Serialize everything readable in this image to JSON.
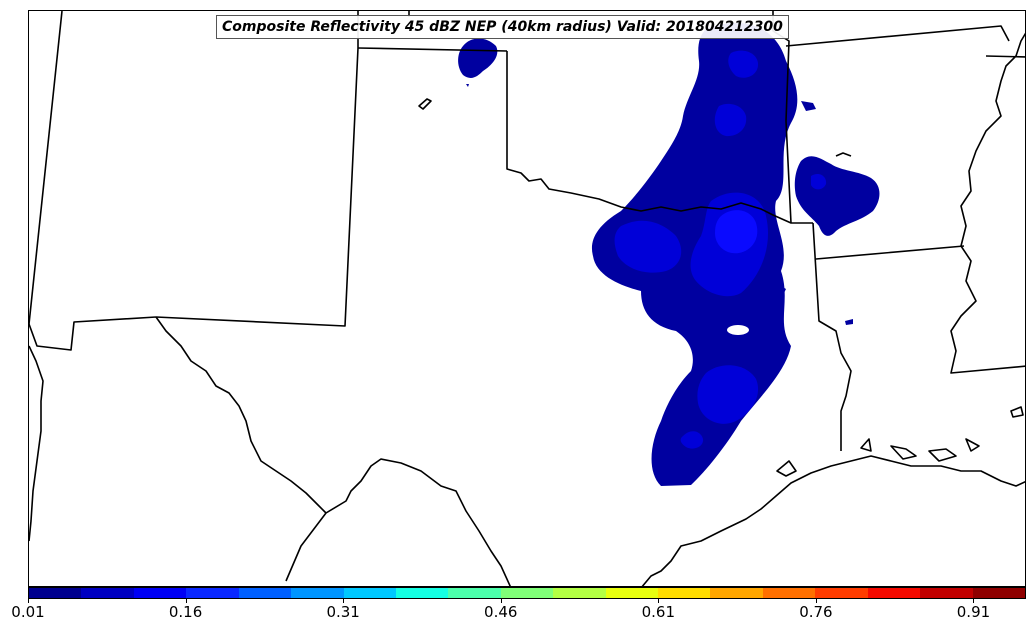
{
  "title": "Composite Reflectivity 45 dBZ NEP (40km radius) Valid: 201804212300",
  "colorbar": {
    "colors": [
      "#00008f",
      "#0000c2",
      "#0000f5",
      "#0a28ff",
      "#0060ff",
      "#0095ff",
      "#00c8ff",
      "#14ffe3",
      "#4cffab",
      "#80ff78",
      "#b3ff44",
      "#e8ff0f",
      "#ffdd00",
      "#ffa600",
      "#ff7000",
      "#ff3c00",
      "#f50a00",
      "#c20000",
      "#8f0000"
    ],
    "tick_labels": [
      "0.01",
      "0.16",
      "0.31",
      "0.46",
      "0.61",
      "0.76",
      "0.91"
    ]
  },
  "map": {
    "region": "Southern Plains (Texas, Oklahoma, Louisiana, Arkansas)",
    "field": "45 dBZ neighborhood exceedance probability",
    "colors": {
      "low": "#0000a0",
      "mid": "#0000d8",
      "high": "#0a0aff",
      "border": "#000000"
    }
  }
}
